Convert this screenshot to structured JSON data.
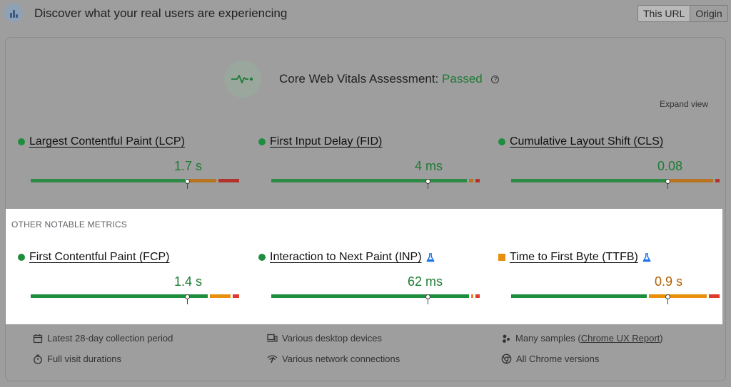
{
  "header": {
    "title": "Discover what your real users are experiencing",
    "tabs": [
      {
        "label": "This URL",
        "active": true
      },
      {
        "label": "Origin",
        "active": false
      }
    ]
  },
  "assessment": {
    "label": "Core Web Vitals Assessment:",
    "status": "Passed",
    "help_glyph": "?",
    "status_color": "#1e7b34"
  },
  "expand_view": "Expand view",
  "core_metrics": [
    {
      "name": "Largest Contentful Paint (LCP)",
      "value": "1.7 s",
      "rating": "good",
      "marker_fraction": 0.75,
      "segments": [
        0.75,
        0.15,
        0.1
      ]
    },
    {
      "name": "First Input Delay (FID)",
      "value": "4 ms",
      "rating": "good",
      "marker_fraction": 0.75,
      "segments": [
        0.95,
        0.03,
        0.02
      ]
    },
    {
      "name": "Cumulative Layout Shift (CLS)",
      "value": "0.08",
      "rating": "good",
      "marker_fraction": 0.75,
      "segments": [
        0.76,
        0.22,
        0.02
      ]
    }
  ],
  "other_metrics_title": "OTHER NOTABLE METRICS",
  "other_metrics": [
    {
      "name": "First Contentful Paint (FCP)",
      "value": "1.4 s",
      "rating": "good",
      "experimental": false,
      "marker_fraction": 0.75,
      "segments": [
        0.86,
        0.11,
        0.03
      ]
    },
    {
      "name": "Interaction to Next Paint (INP)",
      "value": "62 ms",
      "rating": "good",
      "experimental": true,
      "marker_fraction": 0.75,
      "segments": [
        0.96,
        0.02,
        0.02
      ]
    },
    {
      "name": "Time to First Byte (TTFB)",
      "value": "0.9 s",
      "rating": "needs-improvement",
      "experimental": true,
      "marker_fraction": 0.75,
      "segments": [
        0.66,
        0.29,
        0.05
      ]
    }
  ],
  "footer": {
    "collection_period": "Latest 28-day collection period",
    "visit_durations": "Full visit durations",
    "devices": "Various desktop devices",
    "network": "Various network connections",
    "samples_prefix": "Many samples (",
    "samples_link": "Chrome UX Report",
    "samples_suffix": ")",
    "chrome_versions": "All Chrome versions"
  },
  "colors": {
    "good": "#1e8e3e",
    "needs_improvement": "#e8900c",
    "poor": "#e03a2f",
    "good_dim": "#2f8a45",
    "ni_dim": "#b87521",
    "poor_dim": "#b1342c"
  },
  "icons": {
    "logo": "pagespeed-logo-icon",
    "assessment": "heartbeat-icon",
    "experimental": "flask-icon",
    "calendar": "calendar-icon",
    "timer": "timer-icon",
    "devices": "devices-icon",
    "network": "network-icon",
    "samples": "samples-icon",
    "chrome": "chrome-icon"
  }
}
